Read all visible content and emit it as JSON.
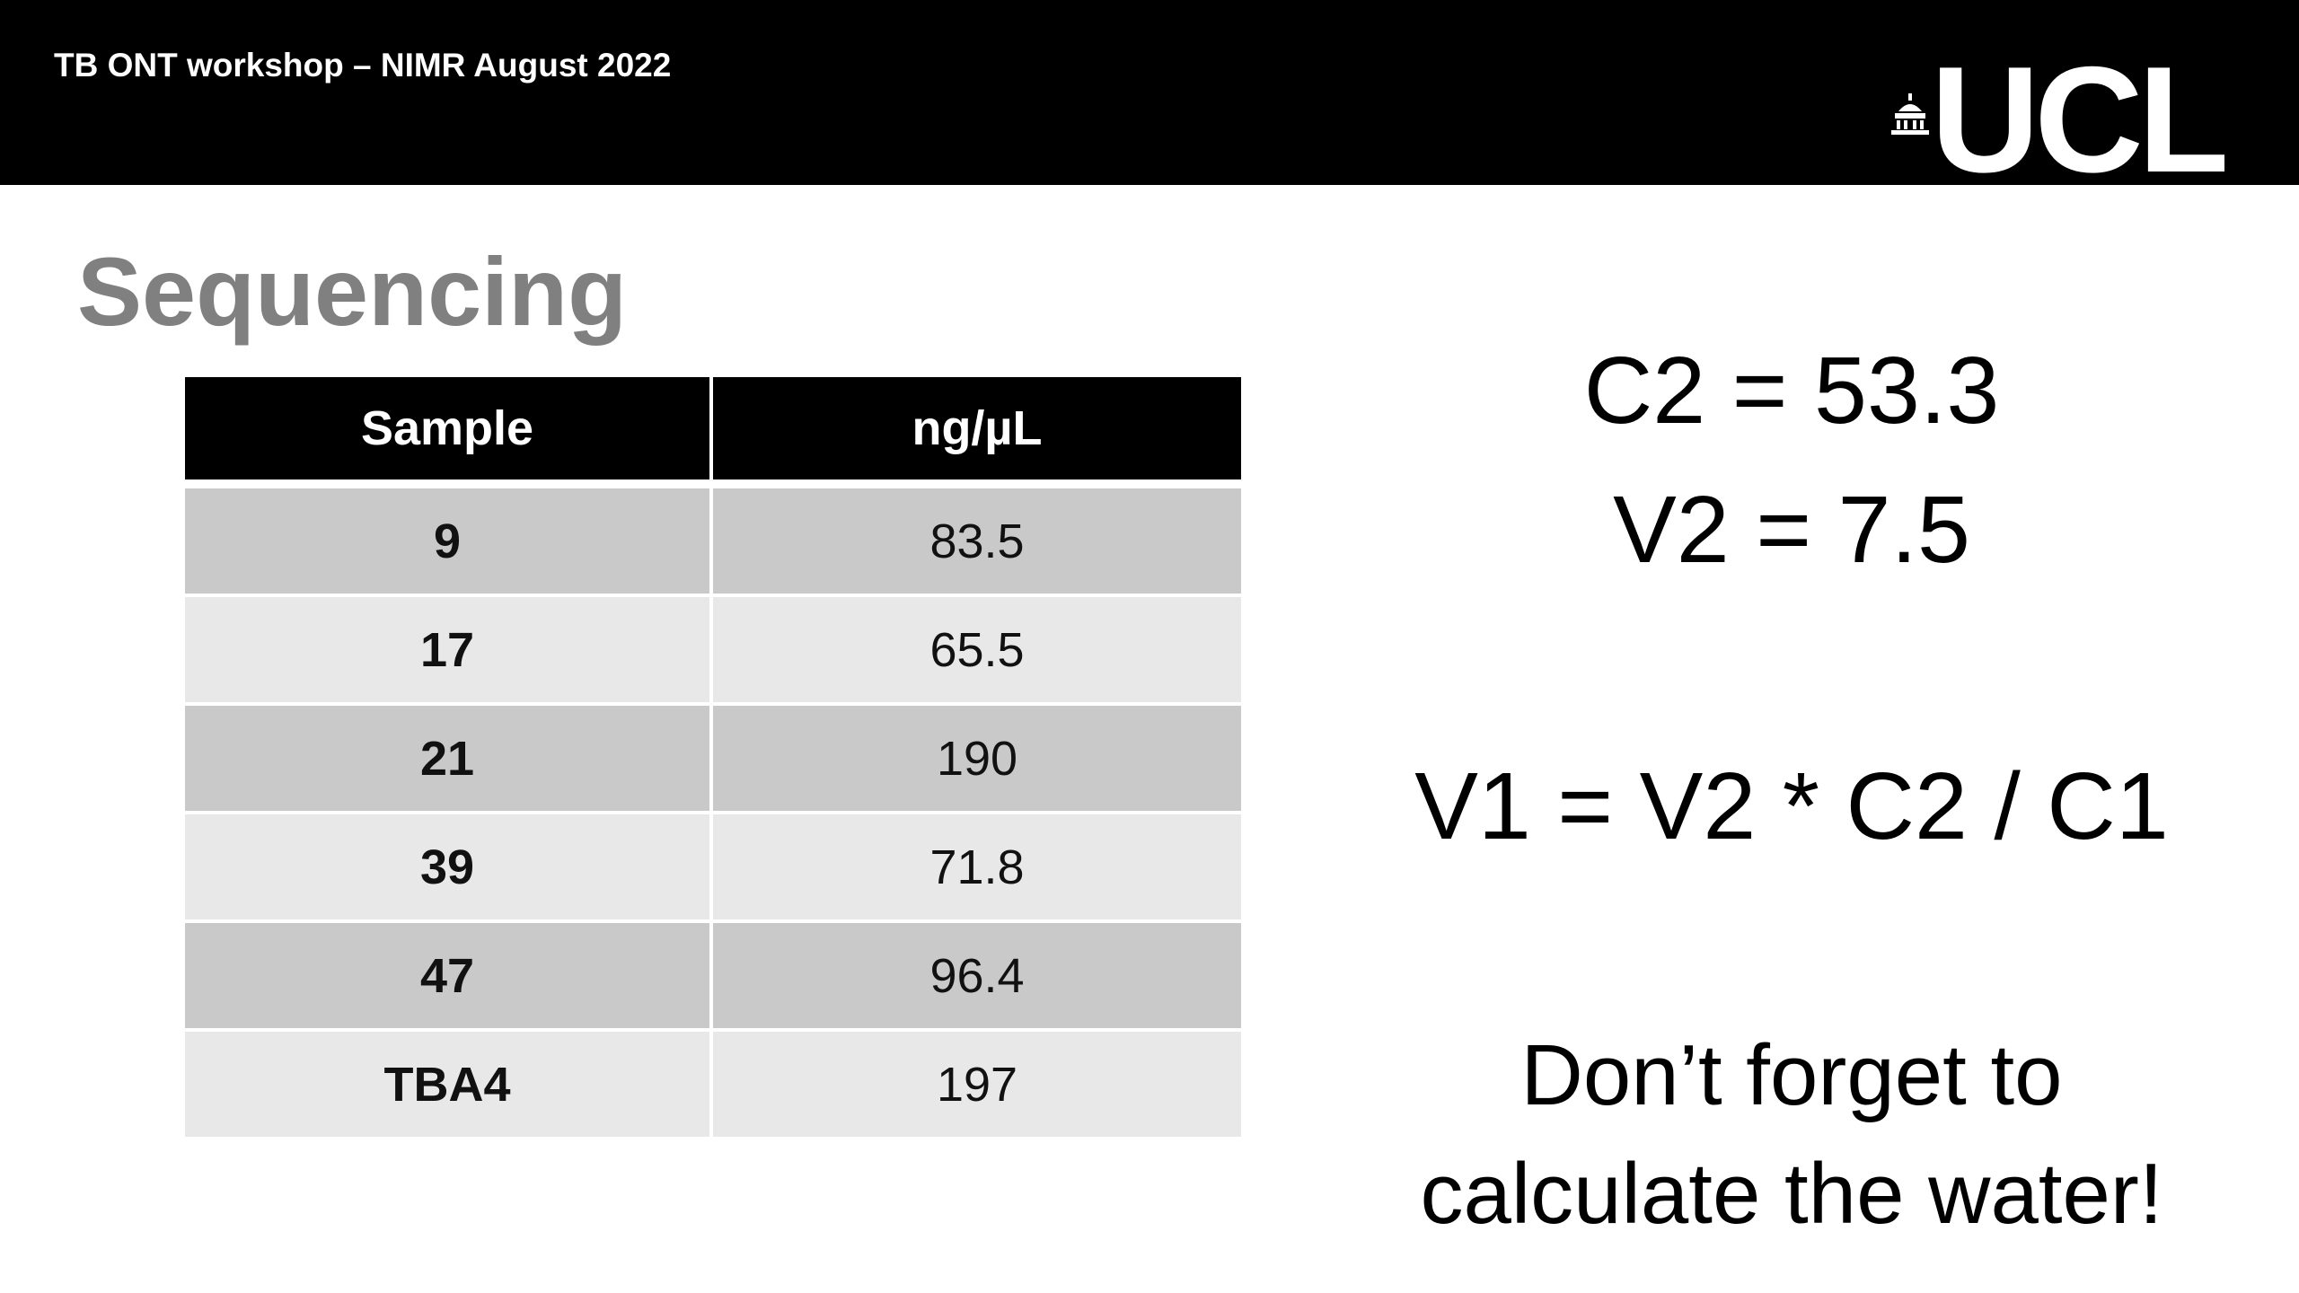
{
  "header": {
    "title": "TB ONT workshop – NIMR August 2022",
    "logo": "UCL"
  },
  "slide_title": "Sequencing",
  "table": {
    "columns": [
      "Sample",
      "ng/µL"
    ],
    "rows": [
      [
        "9",
        "83.5"
      ],
      [
        "17",
        "65.5"
      ],
      [
        "21",
        "190"
      ],
      [
        "39",
        "71.8"
      ],
      [
        "47",
        "96.4"
      ],
      [
        "TBA4",
        "197"
      ]
    ]
  },
  "formulas": [
    "C2 = 53.3",
    "V2 = 7.5",
    "V1 = V2 * C2 / C1"
  ],
  "note": [
    "Don’t forget to",
    "calculate the water!"
  ]
}
